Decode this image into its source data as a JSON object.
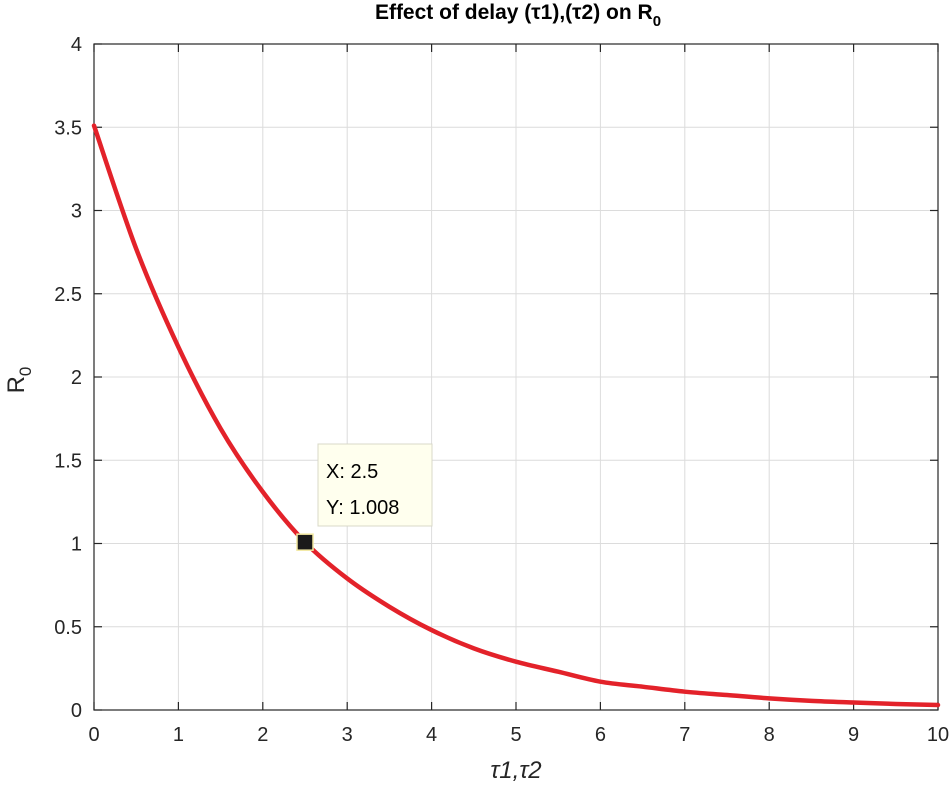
{
  "chart_data": {
    "type": "line",
    "title": "Effect of delay (τ1),(τ2) on R",
    "title_subscript": "0",
    "xlabel": "τ1,τ2",
    "ylabel": "R",
    "ylabel_subscript": "0",
    "xlim": [
      0,
      10
    ],
    "ylim": [
      0,
      4
    ],
    "xticks": [
      0,
      1,
      2,
      3,
      4,
      5,
      6,
      7,
      8,
      9,
      10
    ],
    "yticks": [
      0,
      0.5,
      1,
      1.5,
      2,
      2.5,
      3,
      3.5,
      4
    ],
    "xtick_labels": [
      "0",
      "1",
      "2",
      "3",
      "4",
      "5",
      "6",
      "7",
      "8",
      "9",
      "10"
    ],
    "ytick_labels": [
      "0",
      "0.5",
      "1",
      "1.5",
      "2",
      "2.5",
      "3",
      "3.5",
      "4"
    ],
    "grid": true,
    "series": [
      {
        "name": "R0",
        "color": "#e3222a",
        "x": [
          0,
          0.5,
          1,
          1.5,
          2,
          2.5,
          3,
          3.5,
          4,
          4.5,
          5,
          5.5,
          6,
          6.5,
          7,
          7.5,
          8,
          8.5,
          9,
          9.5,
          10
        ],
        "y": [
          3.51,
          2.77,
          2.18,
          1.69,
          1.31,
          1.008,
          0.79,
          0.62,
          0.48,
          0.37,
          0.29,
          0.23,
          0.17,
          0.14,
          0.11,
          0.09,
          0.07,
          0.055,
          0.045,
          0.036,
          0.03
        ]
      }
    ],
    "datatip": {
      "x": 2.5,
      "y": 1.008,
      "x_text": "X: 2.5",
      "y_text": "Y: 1.008"
    }
  }
}
